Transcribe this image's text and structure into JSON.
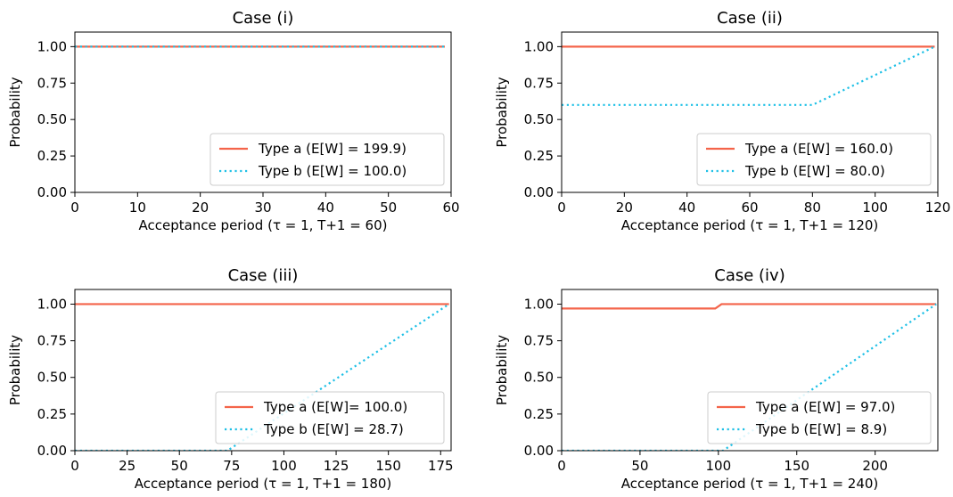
{
  "chart_data": [
    {
      "type": "line",
      "title": "Case (i)",
      "xlabel": "Acceptance period (τ = 1, T+1 = 60)",
      "ylabel": "Probability",
      "xlim": [
        0,
        60
      ],
      "ylim": [
        0,
        1.1
      ],
      "xticks": [
        0,
        10,
        20,
        30,
        40,
        50,
        60
      ],
      "yticks": [
        0.0,
        0.25,
        0.5,
        0.75,
        1.0
      ],
      "legend_position": "lower-right",
      "series": [
        {
          "name": "Type a (E[W] = 199.9)",
          "style": "solid",
          "color": "#f4644a",
          "points": [
            [
              0,
              1.0
            ],
            [
              59,
              1.0
            ]
          ]
        },
        {
          "name": "Type b (E[W] = 100.0)",
          "style": "dotted",
          "color": "#1ec0e6",
          "points": [
            [
              0,
              1.0
            ],
            [
              59,
              1.0
            ]
          ]
        }
      ]
    },
    {
      "type": "line",
      "title": "Case (ii)",
      "xlabel": "Acceptance period (τ = 1, T+1 = 120)",
      "ylabel": "Probability",
      "xlim": [
        0,
        120
      ],
      "ylim": [
        0,
        1.1
      ],
      "xticks": [
        0,
        20,
        40,
        60,
        80,
        100,
        120
      ],
      "yticks": [
        0.0,
        0.25,
        0.5,
        0.75,
        1.0
      ],
      "legend_position": "lower-right",
      "series": [
        {
          "name": "Type a (E[W] = 160.0)",
          "style": "solid",
          "color": "#f4644a",
          "points": [
            [
              0,
              1.0
            ],
            [
              119,
              1.0
            ]
          ]
        },
        {
          "name": "Type b (E[W] = 80.0)",
          "style": "dotted",
          "color": "#1ec0e6",
          "points": [
            [
              0,
              0.6
            ],
            [
              80,
              0.6
            ],
            [
              119,
              1.0
            ]
          ]
        }
      ]
    },
    {
      "type": "line",
      "title": "Case (iii)",
      "xlabel": "Acceptance period (τ = 1, T+1 = 180)",
      "ylabel": "Probability",
      "xlim": [
        0,
        180
      ],
      "ylim": [
        0,
        1.1
      ],
      "xticks": [
        0,
        25,
        50,
        75,
        100,
        125,
        150,
        175
      ],
      "yticks": [
        0.0,
        0.25,
        0.5,
        0.75,
        1.0
      ],
      "legend_position": "lower-right",
      "series": [
        {
          "name": "Type a (E[W]= 100.0)",
          "style": "solid",
          "color": "#f4644a",
          "points": [
            [
              0,
              1.0
            ],
            [
              179,
              1.0
            ]
          ]
        },
        {
          "name": "Type b (E[W] = 28.7)",
          "style": "dotted",
          "color": "#1ec0e6",
          "points": [
            [
              0,
              0.0
            ],
            [
              73,
              0.0
            ],
            [
              179,
              1.0
            ]
          ]
        }
      ]
    },
    {
      "type": "line",
      "title": "Case (iv)",
      "xlabel": "Acceptance period (τ = 1, T+1 = 240)",
      "ylabel": "Probability",
      "xlim": [
        0,
        240
      ],
      "ylim": [
        0,
        1.1
      ],
      "xticks": [
        0,
        50,
        100,
        150,
        200
      ],
      "yticks": [
        0.0,
        0.25,
        0.5,
        0.75,
        1.0
      ],
      "legend_position": "lower-right",
      "series": [
        {
          "name": "Type a (E[W] = 97.0)",
          "style": "solid",
          "color": "#f4644a",
          "points": [
            [
              0,
              0.97
            ],
            [
              98,
              0.97
            ],
            [
              102,
              1.0
            ],
            [
              239,
              1.0
            ]
          ]
        },
        {
          "name": "Type b (E[W] = 8.9)",
          "style": "dotted",
          "color": "#1ec0e6",
          "points": [
            [
              0,
              0.0
            ],
            [
              103,
              0.0
            ],
            [
              239,
              1.0
            ]
          ]
        }
      ]
    }
  ]
}
